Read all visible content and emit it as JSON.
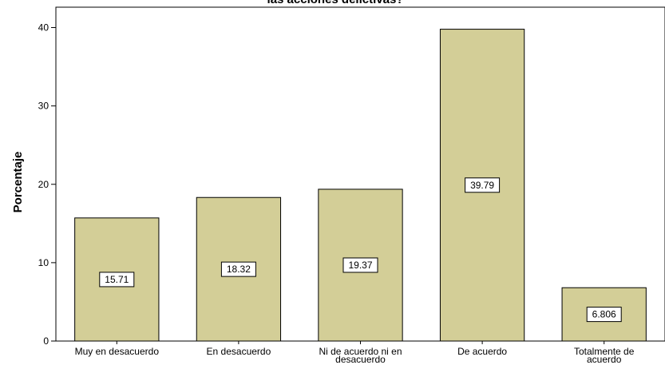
{
  "chart_data": {
    "type": "bar",
    "title": "las acciones delictivas?",
    "xlabel": "",
    "ylabel": "Porcentaje",
    "categories": [
      [
        "Muy en desacuerdo"
      ],
      [
        "En desacuerdo"
      ],
      [
        "Ni de acuerdo ni en",
        "desacuerdo"
      ],
      [
        "De acuerdo"
      ],
      [
        "Totalmente de",
        "acuerdo"
      ]
    ],
    "values": [
      15.71,
      18.32,
      19.37,
      39.79,
      6.806
    ],
    "data_labels": [
      "15.71",
      "18.32",
      "19.37",
      "39.79",
      "6.806"
    ],
    "yticks": [
      0,
      10,
      20,
      30,
      40
    ],
    "ylim": [
      0,
      42.6
    ],
    "grid": false,
    "bar_color": "#d3ce97",
    "bar_edge_color": "#000000"
  }
}
